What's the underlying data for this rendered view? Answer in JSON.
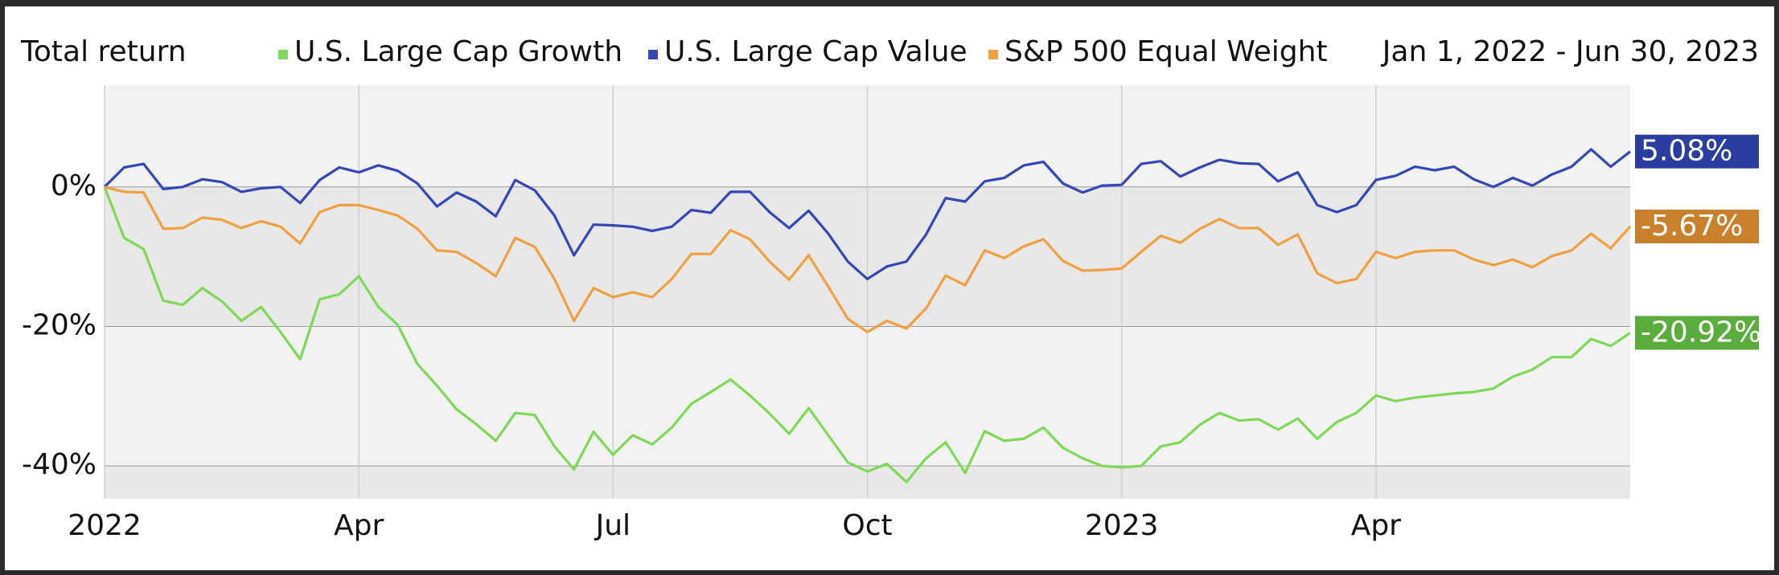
{
  "chart_data": {
    "type": "line",
    "title": "Total return",
    "date_range": "Jan 1, 2022 - Jun 30, 2023",
    "categories": [
      "2022",
      null,
      null,
      null,
      null,
      null,
      null,
      null,
      null,
      null,
      null,
      null,
      null,
      "Apr",
      null,
      null,
      null,
      null,
      null,
      null,
      null,
      null,
      null,
      null,
      null,
      null,
      "Jul",
      null,
      null,
      null,
      null,
      null,
      null,
      null,
      null,
      null,
      null,
      null,
      null,
      "Oct",
      null,
      null,
      null,
      null,
      null,
      null,
      null,
      null,
      null,
      null,
      null,
      null,
      "2023",
      null,
      null,
      null,
      null,
      null,
      null,
      null,
      null,
      null,
      null,
      null,
      null,
      "Apr",
      null,
      null,
      null,
      null,
      null,
      null,
      null,
      null,
      null,
      null,
      null,
      null,
      null
    ],
    "ylim": [
      -44.7,
      14.6
    ],
    "yticks": [
      {
        "value": -40,
        "label": "-40%"
      },
      {
        "value": -20,
        "label": "-20%"
      },
      {
        "value": 0,
        "label": "0%"
      }
    ],
    "grid": "bands",
    "legend": "top",
    "series": [
      {
        "name": "U.S. Large Cap Growth",
        "color": "#7ed957",
        "label_color": "#5aac3c",
        "label": "-20.92%",
        "values": [
          0,
          -7.3,
          -8.9,
          -16.3,
          -16.9,
          -14.5,
          -16.4,
          -19.2,
          -17.2,
          -20.8,
          -24.7,
          -16.1,
          -15.4,
          -12.8,
          -17.2,
          -19.8,
          -25.4,
          -28.5,
          -31.9,
          -34.0,
          -36.4,
          -32.4,
          -32.7,
          -37.2,
          -40.5,
          -35.1,
          -38.4,
          -35.6,
          -36.9,
          -34.5,
          -31.1,
          -29.4,
          -27.6,
          -29.9,
          -32.5,
          -35.4,
          -31.7,
          -35.6,
          -39.5,
          -40.8,
          -39.7,
          -42.3,
          -38.9,
          -36.6,
          -41.0,
          -35.0,
          -36.4,
          -36.1,
          -34.5,
          -37.4,
          -38.9,
          -40.0,
          -40.2,
          -40.0,
          -37.2,
          -36.6,
          -34.1,
          -32.4,
          -33.5,
          -33.3,
          -34.8,
          -33.2,
          -36.1,
          -33.7,
          -32.4,
          -29.9,
          -30.7,
          -30.2,
          -29.9,
          -29.6,
          -29.4,
          -28.9,
          -27.2,
          -26.2,
          -24.4,
          -24.4,
          -21.8,
          -22.8,
          -20.92
        ]
      },
      {
        "name": "U.S. Large Cap Value",
        "color": "#3347b5",
        "label_color": "#2b3d9e",
        "label": "5.08%",
        "values": [
          0,
          2.8,
          3.3,
          -0.3,
          0,
          1.1,
          0.7,
          -0.7,
          -0.2,
          0,
          -2.3,
          1.0,
          2.8,
          2.1,
          3.1,
          2.3,
          0.5,
          -2.8,
          -0.8,
          -2.1,
          -4.2,
          1.0,
          -0.5,
          -4.1,
          -9.8,
          -5.4,
          -5.5,
          -5.7,
          -6.3,
          -5.7,
          -3.3,
          -3.7,
          -0.7,
          -0.7,
          -3.6,
          -5.9,
          -3.4,
          -6.7,
          -10.7,
          -13.2,
          -11.4,
          -10.7,
          -6.8,
          -1.6,
          -2.1,
          0.8,
          1.3,
          3.1,
          3.6,
          0.5,
          -0.8,
          0.2,
          0.3,
          3.3,
          3.7,
          1.5,
          2.8,
          3.9,
          3.4,
          3.3,
          0.8,
          2.1,
          -2.6,
          -3.6,
          -2.6,
          1.0,
          1.6,
          2.9,
          2.4,
          2.9,
          1.1,
          0,
          1.3,
          0.2,
          1.8,
          2.9,
          5.4,
          2.9,
          5.08
        ]
      },
      {
        "name": "S&P 500 Equal Weight",
        "color": "#f0a040",
        "label_color": "#c9802c",
        "label": "-5.67%",
        "values": [
          0,
          -0.7,
          -0.8,
          -6.0,
          -5.9,
          -4.4,
          -4.7,
          -5.9,
          -4.9,
          -5.7,
          -8.1,
          -3.6,
          -2.6,
          -2.6,
          -3.3,
          -4.1,
          -6.0,
          -9.1,
          -9.3,
          -10.9,
          -12.8,
          -7.3,
          -8.6,
          -13.2,
          -19.2,
          -14.5,
          -15.8,
          -15.1,
          -15.8,
          -13.2,
          -9.6,
          -9.6,
          -6.2,
          -7.5,
          -10.7,
          -13.3,
          -9.8,
          -14.3,
          -18.9,
          -20.8,
          -19.2,
          -20.3,
          -17.4,
          -12.7,
          -14.1,
          -9.1,
          -10.2,
          -8.5,
          -7.5,
          -10.6,
          -12.0,
          -11.9,
          -11.7,
          -9.3,
          -7.0,
          -8.0,
          -6.0,
          -4.6,
          -5.9,
          -5.9,
          -8.3,
          -6.8,
          -12.4,
          -13.8,
          -13.2,
          -9.3,
          -10.2,
          -9.3,
          -9.1,
          -9.1,
          -10.4,
          -11.2,
          -10.4,
          -11.5,
          -9.9,
          -9.1,
          -6.7,
          -8.8,
          -5.67
        ]
      }
    ]
  }
}
